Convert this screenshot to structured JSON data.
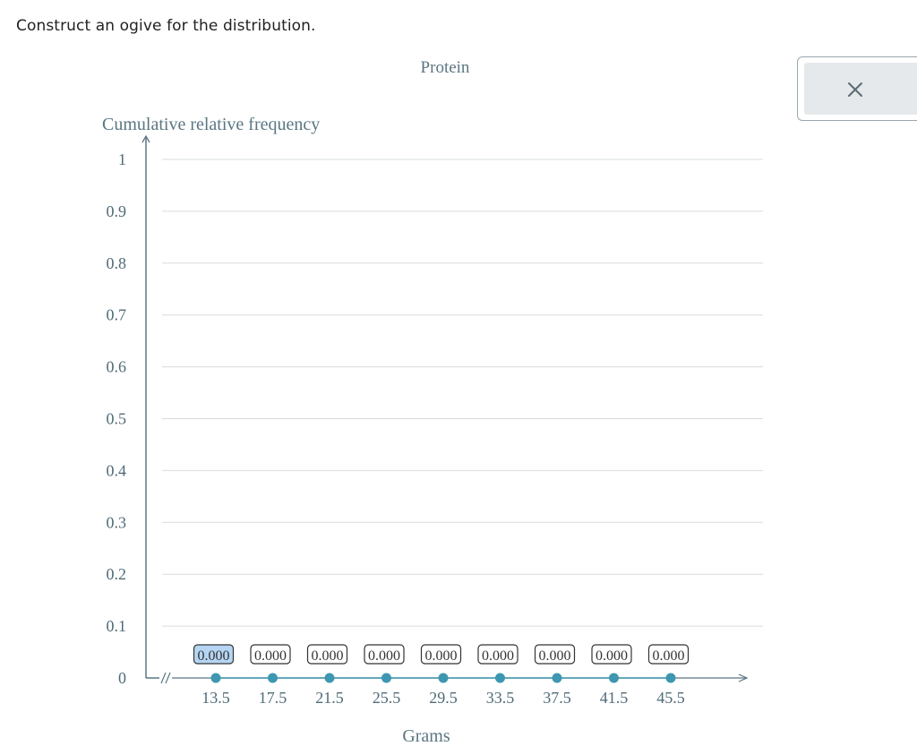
{
  "prompt": "Construct an ogive for the distribution.",
  "colors": {
    "axis": "#5a7682",
    "grid": "#d7dcdf",
    "point": "#3e97b0",
    "line": "#3e97b0",
    "box_border": "#333333",
    "box_selected": "#b5d5f3"
  },
  "tool_panel": {
    "close_icon": "close-icon"
  },
  "chart_data": {
    "type": "line",
    "title": "Protein",
    "xlabel": "Grams",
    "ylabel": "Cumulative relative frequency",
    "y_ticks": [
      "0",
      "0.1",
      "0.2",
      "0.3",
      "0.4",
      "0.5",
      "0.6",
      "0.7",
      "0.8",
      "0.9",
      "1"
    ],
    "ylim": [
      0,
      1
    ],
    "x": [
      13.5,
      17.5,
      21.5,
      25.5,
      29.5,
      33.5,
      37.5,
      41.5,
      45.5
    ],
    "x_tick_labels": [
      "13.5",
      "17.5",
      "21.5",
      "25.5",
      "29.5",
      "33.5",
      "37.5",
      "41.5",
      "45.5"
    ],
    "values": [
      0,
      0,
      0,
      0,
      0,
      0,
      0,
      0,
      0
    ],
    "value_labels": [
      "0.000",
      "0.000",
      "0.000",
      "0.000",
      "0.000",
      "0.000",
      "0.000",
      "0.000",
      "0.000"
    ],
    "selected_index": 0,
    "axis_break": true,
    "grid": true
  }
}
